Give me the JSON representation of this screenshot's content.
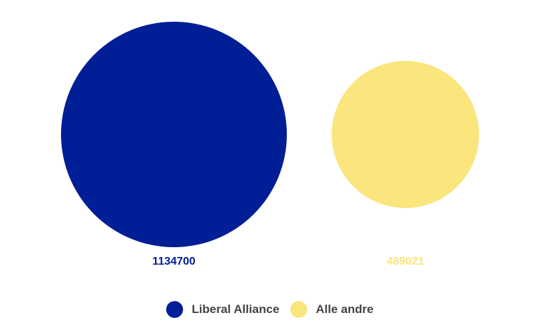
{
  "chart_data": {
    "type": "bubble",
    "series": [
      {
        "name": "Liberal Alliance",
        "value": 1134700,
        "label": "1134700",
        "color": "#001e96"
      },
      {
        "name": "Alle andre",
        "value": 489021,
        "label": "489021",
        "color": "#fbe57d"
      }
    ],
    "legend": "bottom-center"
  }
}
